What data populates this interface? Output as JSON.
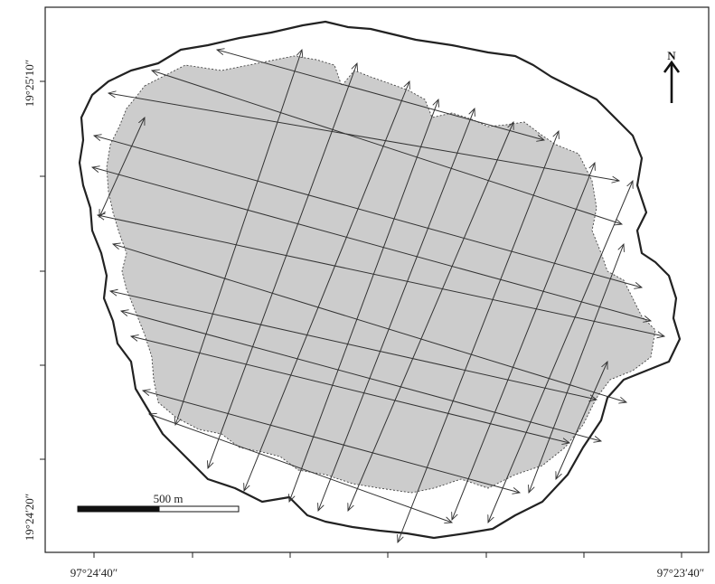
{
  "map": {
    "lat_top": "19°25′10″",
    "lat_bottom": "19°24′20″",
    "lon_left": "97°24′40″",
    "lon_right": "97°23′40″",
    "north": "N",
    "scale": "500 m"
  },
  "colors": {
    "water": "#cccccc",
    "outline": "#222222",
    "transect": "#333333"
  }
}
